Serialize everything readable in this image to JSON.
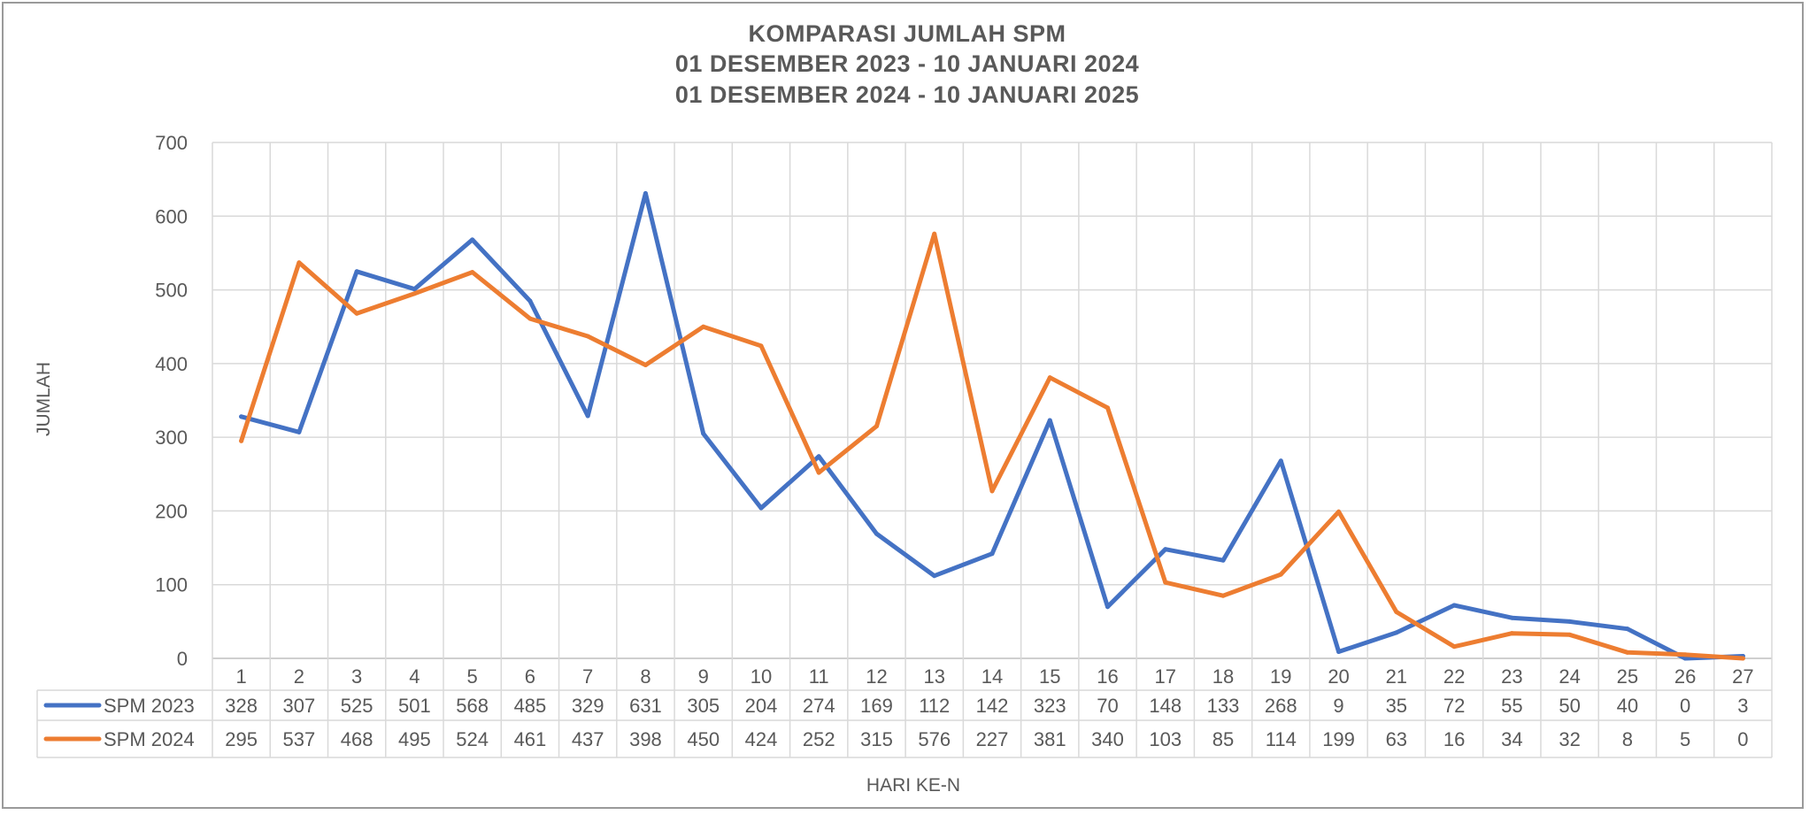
{
  "chart_data": {
    "type": "line",
    "title": [
      "KOMPARASI JUMLAH SPM",
      "01 DESEMBER 2023 - 10 JANUARI 2024",
      "01 DESEMBER 2024 - 10 JANUARI 2025"
    ],
    "xlabel": "HARI KE-N",
    "ylabel": "JUMLAH",
    "ylim": [
      0,
      700
    ],
    "yticks": [
      0,
      100,
      200,
      300,
      400,
      500,
      600,
      700
    ],
    "categories": [
      "1",
      "2",
      "3",
      "4",
      "5",
      "6",
      "7",
      "8",
      "9",
      "10",
      "11",
      "12",
      "13",
      "14",
      "15",
      "16",
      "17",
      "18",
      "19",
      "20",
      "21",
      "22",
      "23",
      "24",
      "25",
      "26",
      "27"
    ],
    "grid": true,
    "legend": "data-table",
    "series": [
      {
        "name": "SPM 2023",
        "color": "#4472C4",
        "values": [
          328,
          307,
          525,
          501,
          568,
          485,
          329,
          631,
          305,
          204,
          274,
          169,
          112,
          142,
          323,
          70,
          148,
          133,
          268,
          9,
          35,
          72,
          55,
          50,
          40,
          0,
          3
        ]
      },
      {
        "name": "SPM 2024",
        "color": "#ED7D31",
        "values": [
          295,
          537,
          468,
          495,
          524,
          461,
          437,
          398,
          450,
          424,
          252,
          315,
          576,
          227,
          381,
          340,
          103,
          85,
          114,
          199,
          63,
          16,
          34,
          32,
          8,
          5,
          0
        ]
      }
    ]
  }
}
